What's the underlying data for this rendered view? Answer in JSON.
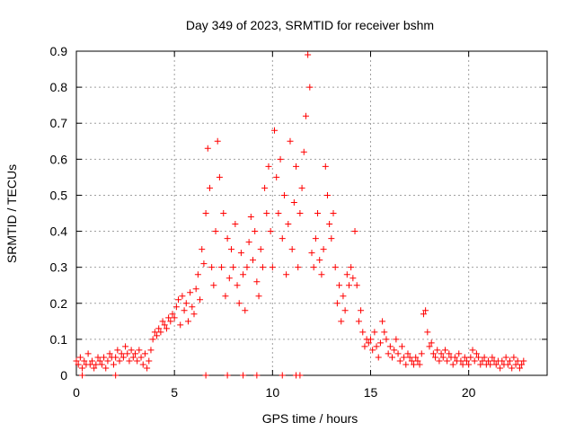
{
  "chart_data": {
    "type": "scatter",
    "title": "Day 349 of 2023, SRMTID for receiver bshm",
    "xlabel": "GPS time / hours",
    "ylabel": "SRMTID / TECUs",
    "xlim": [
      0,
      24
    ],
    "ylim": [
      0,
      0.9
    ],
    "x_ticks": [
      0,
      5,
      10,
      15,
      20
    ],
    "x_tick_labels": [
      "0",
      "5",
      "10",
      "15",
      "20"
    ],
    "y_ticks": [
      0,
      0.1,
      0.2,
      0.3,
      0.4,
      0.5,
      0.6,
      0.7,
      0.8,
      0.9
    ],
    "y_tick_labels": [
      "0",
      "0.1",
      "0.2",
      "0.3",
      "0.4",
      "0.5",
      "0.6",
      "0.7",
      "0.8",
      "0.9"
    ],
    "grid": true,
    "marker": "+",
    "colors": {
      "points": "#ff0000",
      "grid": "#a0a0a0",
      "axes": "#000000"
    },
    "series": [
      {
        "name": "SRMTID",
        "points": [
          [
            0.0,
            0.04
          ],
          [
            0.1,
            0.03
          ],
          [
            0.2,
            0.05
          ],
          [
            0.3,
            0.02
          ],
          [
            0.4,
            0.04
          ],
          [
            0.5,
            0.03
          ],
          [
            0.6,
            0.06
          ],
          [
            0.7,
            0.03
          ],
          [
            0.8,
            0.04
          ],
          [
            0.9,
            0.02
          ],
          [
            1.0,
            0.03
          ],
          [
            1.1,
            0.05
          ],
          [
            1.2,
            0.04
          ],
          [
            1.3,
            0.03
          ],
          [
            1.4,
            0.05
          ],
          [
            1.5,
            0.02
          ],
          [
            1.6,
            0.04
          ],
          [
            1.7,
            0.06
          ],
          [
            1.8,
            0.05
          ],
          [
            1.9,
            0.03
          ],
          [
            2.0,
            0.05
          ],
          [
            2.1,
            0.07
          ],
          [
            2.2,
            0.04
          ],
          [
            2.3,
            0.06
          ],
          [
            2.4,
            0.05
          ],
          [
            2.5,
            0.08
          ],
          [
            2.6,
            0.06
          ],
          [
            2.7,
            0.04
          ],
          [
            2.8,
            0.07
          ],
          [
            2.9,
            0.05
          ],
          [
            3.0,
            0.06
          ],
          [
            3.1,
            0.04
          ],
          [
            3.2,
            0.07
          ],
          [
            3.3,
            0.05
          ],
          [
            3.4,
            0.03
          ],
          [
            3.5,
            0.06
          ],
          [
            3.6,
            0.02
          ],
          [
            3.7,
            0.04
          ],
          [
            3.8,
            0.07
          ],
          [
            3.9,
            0.1
          ],
          [
            4.0,
            0.12
          ],
          [
            4.1,
            0.11
          ],
          [
            4.2,
            0.13
          ],
          [
            4.3,
            0.12
          ],
          [
            4.4,
            0.15
          ],
          [
            4.5,
            0.14
          ],
          [
            4.6,
            0.13
          ],
          [
            4.7,
            0.16
          ],
          [
            4.8,
            0.15
          ],
          [
            4.9,
            0.17
          ],
          [
            5.0,
            0.16
          ],
          [
            5.1,
            0.19
          ],
          [
            5.2,
            0.21
          ],
          [
            5.3,
            0.14
          ],
          [
            5.4,
            0.22
          ],
          [
            5.5,
            0.18
          ],
          [
            5.6,
            0.2
          ],
          [
            5.7,
            0.15
          ],
          [
            5.8,
            0.23
          ],
          [
            5.9,
            0.19
          ],
          [
            6.0,
            0.17
          ],
          [
            6.1,
            0.24
          ],
          [
            6.2,
            0.28
          ],
          [
            6.3,
            0.21
          ],
          [
            6.4,
            0.35
          ],
          [
            6.5,
            0.31
          ],
          [
            6.6,
            0.45
          ],
          [
            6.7,
            0.63
          ],
          [
            6.8,
            0.52
          ],
          [
            6.9,
            0.3
          ],
          [
            7.0,
            0.25
          ],
          [
            7.1,
            0.4
          ],
          [
            7.2,
            0.65
          ],
          [
            7.3,
            0.55
          ],
          [
            7.4,
            0.3
          ],
          [
            7.5,
            0.45
          ],
          [
            7.6,
            0.22
          ],
          [
            7.7,
            0.38
          ],
          [
            7.8,
            0.27
          ],
          [
            7.9,
            0.35
          ],
          [
            8.0,
            0.3
          ],
          [
            8.1,
            0.42
          ],
          [
            8.2,
            0.25
          ],
          [
            8.3,
            0.2
          ],
          [
            8.4,
            0.34
          ],
          [
            8.5,
            0.28
          ],
          [
            8.6,
            0.18
          ],
          [
            8.7,
            0.3
          ],
          [
            8.8,
            0.37
          ],
          [
            8.9,
            0.44
          ],
          [
            9.0,
            0.32
          ],
          [
            9.1,
            0.4
          ],
          [
            9.2,
            0.26
          ],
          [
            9.3,
            0.22
          ],
          [
            9.4,
            0.35
          ],
          [
            9.5,
            0.3
          ],
          [
            9.6,
            0.52
          ],
          [
            9.7,
            0.45
          ],
          [
            9.8,
            0.58
          ],
          [
            9.9,
            0.4
          ],
          [
            10.0,
            0.3
          ],
          [
            10.1,
            0.68
          ],
          [
            10.2,
            0.55
          ],
          [
            10.3,
            0.45
          ],
          [
            10.4,
            0.6
          ],
          [
            10.5,
            0.38
          ],
          [
            10.6,
            0.5
          ],
          [
            10.7,
            0.28
          ],
          [
            10.8,
            0.42
          ],
          [
            10.9,
            0.65
          ],
          [
            11.0,
            0.35
          ],
          [
            11.1,
            0.48
          ],
          [
            11.2,
            0.58
          ],
          [
            11.3,
            0.3
          ],
          [
            11.4,
            0.45
          ],
          [
            11.5,
            0.52
          ],
          [
            11.6,
            0.62
          ],
          [
            11.7,
            0.72
          ],
          [
            11.8,
            0.89
          ],
          [
            11.9,
            0.8
          ],
          [
            12.0,
            0.34
          ],
          [
            12.1,
            0.3
          ],
          [
            12.2,
            0.38
          ],
          [
            12.3,
            0.45
          ],
          [
            12.4,
            0.32
          ],
          [
            12.5,
            0.28
          ],
          [
            12.6,
            0.35
          ],
          [
            12.7,
            0.58
          ],
          [
            12.8,
            0.5
          ],
          [
            12.9,
            0.42
          ],
          [
            13.0,
            0.38
          ],
          [
            13.1,
            0.45
          ],
          [
            13.2,
            0.3
          ],
          [
            13.3,
            0.2
          ],
          [
            13.4,
            0.25
          ],
          [
            13.5,
            0.15
          ],
          [
            13.6,
            0.22
          ],
          [
            13.7,
            0.18
          ],
          [
            13.8,
            0.28
          ],
          [
            13.9,
            0.25
          ],
          [
            14.0,
            0.3
          ],
          [
            14.1,
            0.27
          ],
          [
            14.2,
            0.4
          ],
          [
            14.3,
            0.25
          ],
          [
            14.4,
            0.15
          ],
          [
            14.5,
            0.18
          ],
          [
            14.6,
            0.12
          ],
          [
            14.7,
            0.08
          ],
          [
            14.8,
            0.1
          ],
          [
            14.9,
            0.09
          ],
          [
            15.0,
            0.1
          ],
          [
            15.1,
            0.07
          ],
          [
            15.2,
            0.12
          ],
          [
            15.3,
            0.08
          ],
          [
            15.4,
            0.05
          ],
          [
            15.5,
            0.09
          ],
          [
            15.6,
            0.15
          ],
          [
            15.7,
            0.12
          ],
          [
            15.8,
            0.1
          ],
          [
            15.9,
            0.06
          ],
          [
            16.0,
            0.08
          ],
          [
            16.1,
            0.05
          ],
          [
            16.2,
            0.07
          ],
          [
            16.3,
            0.1
          ],
          [
            16.4,
            0.06
          ],
          [
            16.5,
            0.04
          ],
          [
            16.6,
            0.08
          ],
          [
            16.7,
            0.05
          ],
          [
            16.8,
            0.03
          ],
          [
            16.9,
            0.06
          ],
          [
            17.0,
            0.05
          ],
          [
            17.1,
            0.04
          ],
          [
            17.2,
            0.03
          ],
          [
            17.3,
            0.05
          ],
          [
            17.4,
            0.04
          ],
          [
            17.5,
            0.03
          ],
          [
            17.6,
            0.06
          ],
          [
            17.7,
            0.17
          ],
          [
            17.8,
            0.18
          ],
          [
            17.9,
            0.12
          ],
          [
            18.0,
            0.08
          ],
          [
            18.1,
            0.09
          ],
          [
            18.2,
            0.06
          ],
          [
            18.3,
            0.05
          ],
          [
            18.4,
            0.07
          ],
          [
            18.5,
            0.04
          ],
          [
            18.6,
            0.06
          ],
          [
            18.7,
            0.05
          ],
          [
            18.8,
            0.07
          ],
          [
            18.9,
            0.04
          ],
          [
            19.0,
            0.06
          ],
          [
            19.1,
            0.05
          ],
          [
            19.2,
            0.03
          ],
          [
            19.3,
            0.05
          ],
          [
            19.4,
            0.04
          ],
          [
            19.5,
            0.06
          ],
          [
            19.6,
            0.04
          ],
          [
            19.7,
            0.03
          ],
          [
            19.8,
            0.05
          ],
          [
            19.9,
            0.04
          ],
          [
            20.0,
            0.03
          ],
          [
            20.1,
            0.05
          ],
          [
            20.2,
            0.07
          ],
          [
            20.3,
            0.04
          ],
          [
            20.4,
            0.06
          ],
          [
            20.5,
            0.05
          ],
          [
            20.6,
            0.03
          ],
          [
            20.7,
            0.04
          ],
          [
            20.8,
            0.05
          ],
          [
            20.9,
            0.03
          ],
          [
            21.0,
            0.04
          ],
          [
            21.1,
            0.03
          ],
          [
            21.2,
            0.05
          ],
          [
            21.3,
            0.04
          ],
          [
            21.4,
            0.03
          ],
          [
            21.5,
            0.04
          ],
          [
            21.6,
            0.02
          ],
          [
            21.7,
            0.04
          ],
          [
            21.8,
            0.03
          ],
          [
            21.9,
            0.05
          ],
          [
            22.0,
            0.03
          ],
          [
            22.1,
            0.04
          ],
          [
            22.2,
            0.02
          ],
          [
            22.3,
            0.05
          ],
          [
            22.4,
            0.03
          ],
          [
            22.5,
            0.04
          ],
          [
            22.6,
            0.02
          ],
          [
            22.7,
            0.03
          ],
          [
            22.8,
            0.04
          ],
          [
            6.6,
            0.0
          ],
          [
            7.7,
            0.0
          ],
          [
            8.5,
            0.0
          ],
          [
            9.2,
            0.0
          ],
          [
            10.5,
            0.0
          ],
          [
            11.2,
            0.0
          ],
          [
            11.4,
            0.0
          ],
          [
            0.3,
            0.0
          ],
          [
            2.0,
            0.0
          ]
        ]
      }
    ]
  }
}
